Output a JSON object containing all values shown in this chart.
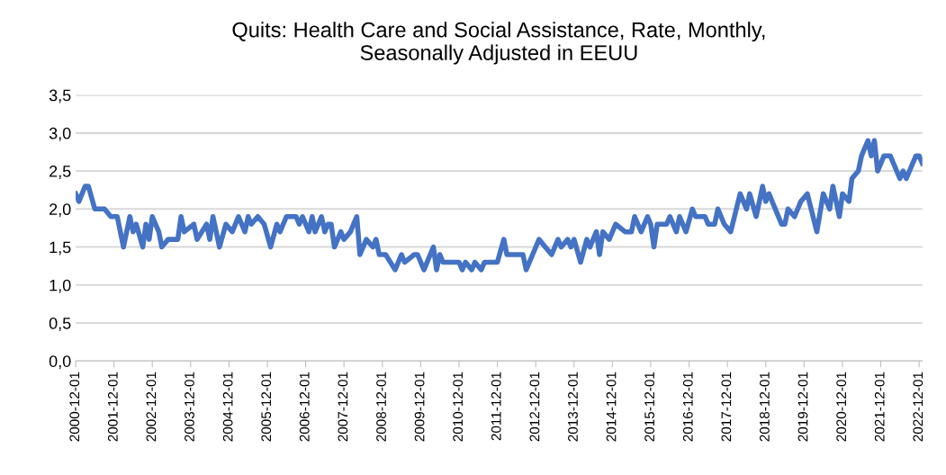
{
  "chart_data": {
    "type": "line",
    "title": "Quits: Health Care and Social Assistance, Rate, Monthly,\nSeasonally Adjusted in EEUU",
    "x": [
      "2000-12",
      "2001-01",
      "2001-03",
      "2001-04",
      "2001-06",
      "2001-09",
      "2001-11",
      "2002-01",
      "2002-03",
      "2002-05",
      "2002-06",
      "2002-07",
      "2002-09",
      "2002-10",
      "2002-11",
      "2002-12",
      "2003-02",
      "2003-03",
      "2003-05",
      "2003-08",
      "2003-09",
      "2003-10",
      "2004-01",
      "2004-02",
      "2004-05",
      "2004-06",
      "2004-07",
      "2004-09",
      "2004-11",
      "2005-01",
      "2005-03",
      "2005-05",
      "2005-06",
      "2005-07",
      "2005-09",
      "2005-11",
      "2006-01",
      "2006-03",
      "2006-04",
      "2006-06",
      "2006-09",
      "2006-10",
      "2006-11",
      "2007-01",
      "2007-02",
      "2007-03",
      "2007-05",
      "2007-06",
      "2007-07",
      "2007-08",
      "2007-09",
      "2007-11",
      "2007-12",
      "2008-02",
      "2008-03",
      "2008-04",
      "2008-05",
      "2008-07",
      "2008-09",
      "2008-10",
      "2008-11",
      "2009-01",
      "2009-04",
      "2009-06",
      "2009-07",
      "2009-10",
      "2009-11",
      "2010-01",
      "2010-04",
      "2010-05",
      "2010-06",
      "2010-07",
      "2010-12",
      "2011-01",
      "2011-02",
      "2011-04",
      "2011-05",
      "2011-07",
      "2011-08",
      "2011-12",
      "2012-02",
      "2012-03",
      "2012-08",
      "2012-09",
      "2012-11",
      "2013-01",
      "2013-03",
      "2013-05",
      "2013-07",
      "2013-08",
      "2013-10",
      "2013-11",
      "2013-12",
      "2014-02",
      "2014-04",
      "2014-05",
      "2014-07",
      "2014-08",
      "2014-09",
      "2014-11",
      "2015-01",
      "2015-04",
      "2015-06",
      "2015-07",
      "2015-09",
      "2015-11",
      "2015-12",
      "2016-01",
      "2016-02",
      "2016-05",
      "2016-06",
      "2016-08",
      "2016-09",
      "2016-11",
      "2017-01",
      "2017-02",
      "2017-05",
      "2017-06",
      "2017-08",
      "2017-09",
      "2017-11",
      "2018-01",
      "2018-04",
      "2018-06",
      "2018-07",
      "2018-09",
      "2018-11",
      "2018-12",
      "2019-01",
      "2019-05",
      "2019-06",
      "2019-07",
      "2019-09",
      "2019-11",
      "2020-01",
      "2020-04",
      "2020-06",
      "2020-08",
      "2020-09",
      "2020-11",
      "2020-12",
      "2021-02",
      "2021-03",
      "2021-05",
      "2021-06",
      "2021-08",
      "2021-09",
      "2021-10",
      "2021-11",
      "2022-01",
      "2022-03",
      "2022-04",
      "2022-06",
      "2022-07",
      "2022-08",
      "2022-10",
      "2022-11",
      "2022-12",
      "2023-01"
    ],
    "series": [
      {
        "color": "#4472c4",
        "values": [
          2.2,
          2.1,
          2.3,
          2.3,
          2.0,
          2.0,
          1.9,
          1.9,
          1.5,
          1.9,
          1.7,
          1.8,
          1.5,
          1.8,
          1.6,
          1.9,
          1.7,
          1.5,
          1.6,
          1.6,
          1.9,
          1.7,
          1.8,
          1.6,
          1.8,
          1.6,
          1.9,
          1.5,
          1.8,
          1.7,
          1.9,
          1.7,
          1.9,
          1.8,
          1.9,
          1.8,
          1.5,
          1.8,
          1.7,
          1.9,
          1.9,
          1.8,
          1.9,
          1.7,
          1.9,
          1.7,
          1.9,
          1.7,
          1.8,
          1.8,
          1.5,
          1.7,
          1.6,
          1.7,
          1.8,
          1.9,
          1.4,
          1.6,
          1.5,
          1.6,
          1.4,
          1.4,
          1.2,
          1.4,
          1.3,
          1.4,
          1.4,
          1.2,
          1.5,
          1.2,
          1.4,
          1.3,
          1.3,
          1.2,
          1.3,
          1.2,
          1.3,
          1.2,
          1.3,
          1.3,
          1.6,
          1.4,
          1.4,
          1.2,
          1.4,
          1.6,
          1.5,
          1.4,
          1.6,
          1.5,
          1.6,
          1.5,
          1.6,
          1.3,
          1.6,
          1.5,
          1.7,
          1.4,
          1.7,
          1.6,
          1.8,
          1.7,
          1.7,
          1.9,
          1.7,
          1.9,
          1.8,
          1.5,
          1.8,
          1.8,
          1.9,
          1.7,
          1.9,
          1.7,
          2.0,
          1.9,
          1.9,
          1.8,
          1.8,
          2.0,
          1.8,
          1.7,
          2.2,
          2.0,
          2.2,
          1.9,
          2.3,
          2.1,
          2.2,
          1.8,
          1.8,
          2.0,
          1.9,
          2.1,
          2.2,
          1.7,
          2.2,
          2.0,
          2.3,
          1.9,
          2.2,
          2.1,
          2.4,
          2.5,
          2.7,
          2.9,
          2.7,
          2.9,
          2.5,
          2.7,
          2.7,
          2.6,
          2.4,
          2.5,
          2.4,
          2.6,
          2.7,
          2.7,
          2.6
        ]
      }
    ],
    "xlim": [
      "2000-12",
      "2023-01"
    ],
    "xticks": [
      "2000-12-01",
      "2001-12-01",
      "2002-12-01",
      "2003-12-01",
      "2004-12-01",
      "2005-12-01",
      "2006-12-01",
      "2007-12-01",
      "2008-12-01",
      "2009-12-01",
      "2010-12-01",
      "2011-12-01",
      "2012-12-01",
      "2013-12-01",
      "2014-12-01",
      "2015-12-01",
      "2016-12-01",
      "2017-12-01",
      "2018-12-01",
      "2019-12-01",
      "2020-12-01",
      "2021-12-01",
      "2022-12-01"
    ],
    "ylim": [
      0,
      3.5
    ],
    "yticks": [
      {
        "value": 0,
        "label": "0,0"
      },
      {
        "value": 0.5,
        "label": "0,5"
      },
      {
        "value": 1.0,
        "label": "1,0"
      },
      {
        "value": 1.5,
        "label": "1,5"
      },
      {
        "value": 2.0,
        "label": "2,0"
      },
      {
        "value": 2.5,
        "label": "2,5"
      },
      {
        "value": 3.0,
        "label": "3,0"
      },
      {
        "value": 3.5,
        "label": "3,5"
      }
    ],
    "grid": "y",
    "line_style": "solid"
  }
}
